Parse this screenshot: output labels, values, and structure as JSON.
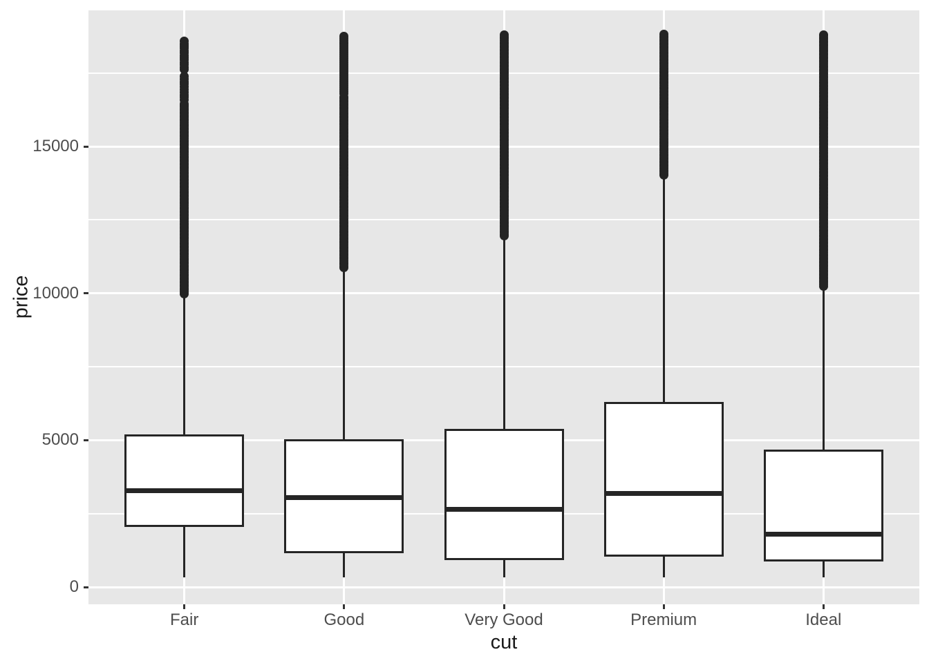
{
  "chart_data": {
    "type": "boxplot",
    "title": "",
    "xlabel": "cut",
    "ylabel": "price",
    "legend": "none",
    "grid": "on",
    "panel_style": "ggplot2-grey",
    "categories": [
      "Fair",
      "Good",
      "Very Good",
      "Premium",
      "Ideal"
    ],
    "y_axis": {
      "major_ticks": [
        0,
        5000,
        10000,
        15000
      ],
      "minor_gridlines": [
        2500,
        7500,
        12500,
        17500
      ],
      "range": [
        -590,
        19740
      ]
    },
    "series": [
      {
        "category": "Fair",
        "whisker_low": 337,
        "q1": 2050,
        "median": 3282,
        "q3": 5205,
        "whisker_high": 9920,
        "outlier_max": 18574,
        "outlier_segments": [
          {
            "from": 9990,
            "to": 16450,
            "step": 60
          },
          {
            "from": 16580,
            "to": 17420,
            "step": 90
          },
          {
            "from": 17620,
            "to": 18574,
            "step": 80
          }
        ]
      },
      {
        "category": "Good",
        "whisker_low": 327,
        "q1": 1145,
        "median": 3050.5,
        "q3": 5028,
        "whisker_high": 10850,
        "outlier_max": 18788,
        "outlier_segments": [
          {
            "from": 10870,
            "to": 16700,
            "step": 60
          },
          {
            "from": 16800,
            "to": 18788,
            "step": 70
          }
        ]
      },
      {
        "category": "Very Good",
        "whisker_low": 336,
        "q1": 912,
        "median": 2648,
        "q3": 5372.75,
        "whisker_high": 11930,
        "outlier_max": 18818,
        "outlier_segments": [
          {
            "from": 11950,
            "to": 18818,
            "step": 60
          }
        ]
      },
      {
        "category": "Premium",
        "whisker_low": 326,
        "q1": 1046,
        "median": 3185,
        "q3": 6296,
        "whisker_high": 14000,
        "outlier_max": 18823,
        "outlier_segments": [
          {
            "from": 14020,
            "to": 18823,
            "step": 60
          }
        ]
      },
      {
        "category": "Ideal",
        "whisker_low": 326,
        "q1": 878,
        "median": 1810,
        "q3": 4678.5,
        "whisker_high": 10230,
        "outlier_max": 18806,
        "outlier_segments": [
          {
            "from": 10250,
            "to": 18806,
            "step": 60
          }
        ]
      }
    ],
    "colors": {
      "page_bg": "#FFFFFF",
      "panel_bg": "#E7E7E7",
      "grid": "#FFFFFF",
      "box_fill": "#FFFFFF",
      "box_stroke": "#252525",
      "outlier_dot": "#242424",
      "tick_mark": "#333333",
      "tick_label": "#4D4D4D",
      "axis_title": "#1A1A1A"
    }
  }
}
